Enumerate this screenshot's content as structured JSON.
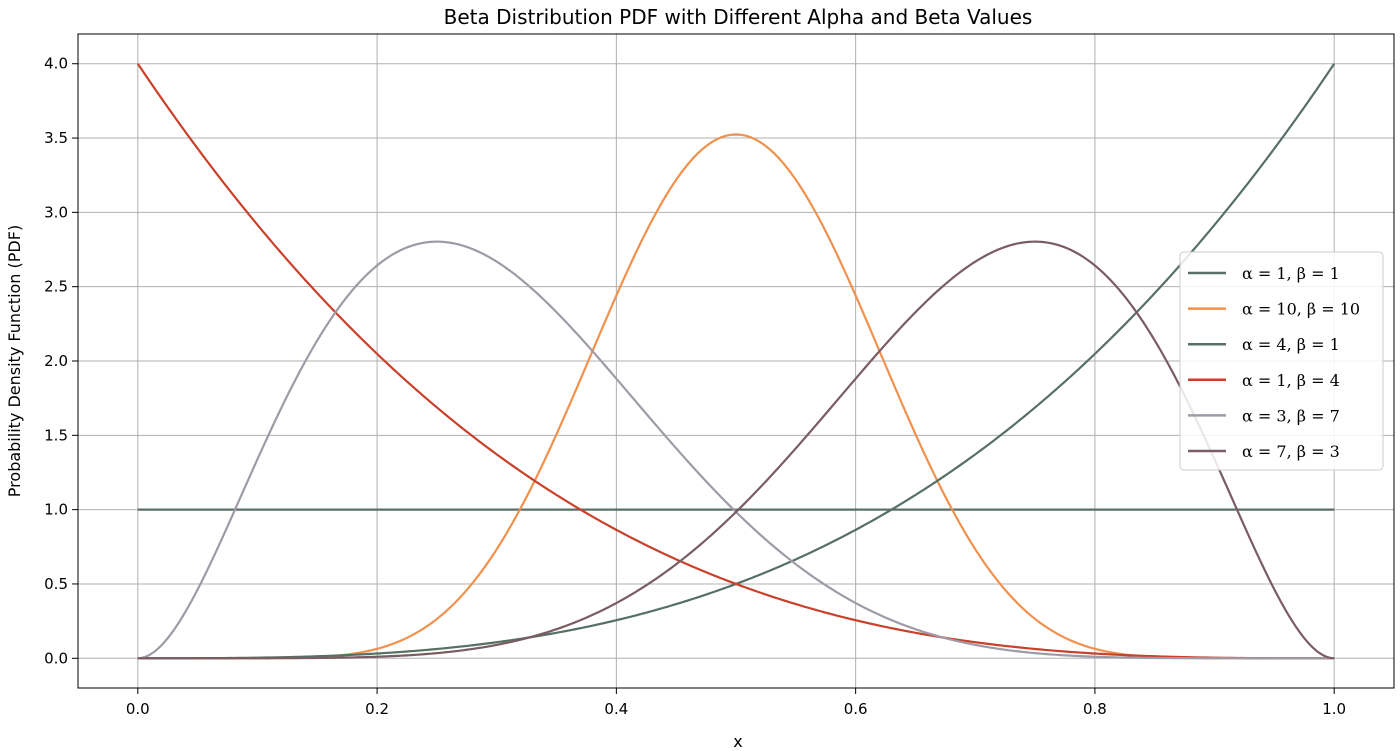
{
  "chart_data": {
    "type": "line",
    "title": "Beta Distribution PDF with Different Alpha and Beta Values",
    "xlabel": "x",
    "ylabel": "Probability Density Function (PDF)",
    "xlim": [
      -0.05,
      1.05
    ],
    "ylim": [
      -0.2,
      4.2
    ],
    "xticks": [
      "0.0",
      "0.2",
      "0.4",
      "0.6",
      "0.8",
      "1.0"
    ],
    "yticks": [
      "0.0",
      "0.5",
      "1.0",
      "1.5",
      "2.0",
      "2.5",
      "3.0",
      "3.5",
      "4.0"
    ],
    "grid": true,
    "legend_position": "center-right",
    "x": [
      0.0,
      0.05,
      0.1,
      0.15,
      0.2,
      0.25,
      0.3,
      0.35,
      0.4,
      0.45,
      0.5,
      0.55,
      0.6,
      0.65,
      0.7,
      0.75,
      0.8,
      0.85,
      0.9,
      0.95,
      1.0
    ],
    "series": [
      {
        "name": "α = 1, β = 1",
        "color": "#5a6e6a",
        "alpha": 1,
        "beta": 1,
        "values": [
          1.0,
          1.0,
          1.0,
          1.0,
          1.0,
          1.0,
          1.0,
          1.0,
          1.0,
          1.0,
          1.0,
          1.0,
          1.0,
          1.0,
          1.0,
          1.0,
          1.0,
          1.0,
          1.0,
          1.0,
          1.0
        ]
      },
      {
        "name": "α = 10, β = 10",
        "color": "#f0914e",
        "alpha": 10,
        "beta": 10,
        "values": [
          0.0,
          0.0,
          0.0,
          0.0,
          0.04,
          0.23,
          0.75,
          1.65,
          2.64,
          3.31,
          3.52,
          3.31,
          2.64,
          1.65,
          0.75,
          0.23,
          0.04,
          0.0,
          0.0,
          0.0,
          0.0
        ]
      },
      {
        "name": "α = 4, β = 1",
        "color": "#577064",
        "alpha": 4,
        "beta": 1,
        "values": [
          0.0,
          0.0,
          0.0,
          0.01,
          0.03,
          0.06,
          0.11,
          0.17,
          0.26,
          0.36,
          0.5,
          0.67,
          0.86,
          1.1,
          1.37,
          1.69,
          2.05,
          2.46,
          2.92,
          3.43,
          4.0
        ]
      },
      {
        "name": "α = 1, β = 4",
        "color": "#c9412a",
        "alpha": 1,
        "beta": 4,
        "values": [
          4.0,
          3.43,
          2.92,
          2.46,
          2.05,
          1.69,
          1.37,
          1.1,
          0.86,
          0.67,
          0.5,
          0.36,
          0.26,
          0.17,
          0.11,
          0.06,
          0.03,
          0.01,
          0.0,
          0.0,
          0.0
        ]
      },
      {
        "name": "α = 3, β = 7",
        "color": "#a09aa7",
        "alpha": 3,
        "beta": 7,
        "values": [
          0.0,
          0.52,
          1.72,
          2.54,
          2.82,
          2.72,
          2.54,
          2.04,
          1.58,
          1.16,
          0.98,
          0.55,
          0.37,
          0.2,
          0.09,
          0.04,
          0.01,
          0.0,
          0.0,
          0.0,
          0.0
        ]
      },
      {
        "name": "α = 7, β = 3",
        "color": "#7a5c63",
        "alpha": 7,
        "beta": 3,
        "values": [
          0.0,
          0.0,
          0.0,
          0.0,
          0.01,
          0.04,
          0.09,
          0.2,
          0.37,
          0.61,
          0.98,
          1.39,
          1.79,
          2.24,
          2.67,
          2.82,
          2.62,
          2.08,
          1.18,
          0.28,
          0.0
        ]
      }
    ]
  }
}
